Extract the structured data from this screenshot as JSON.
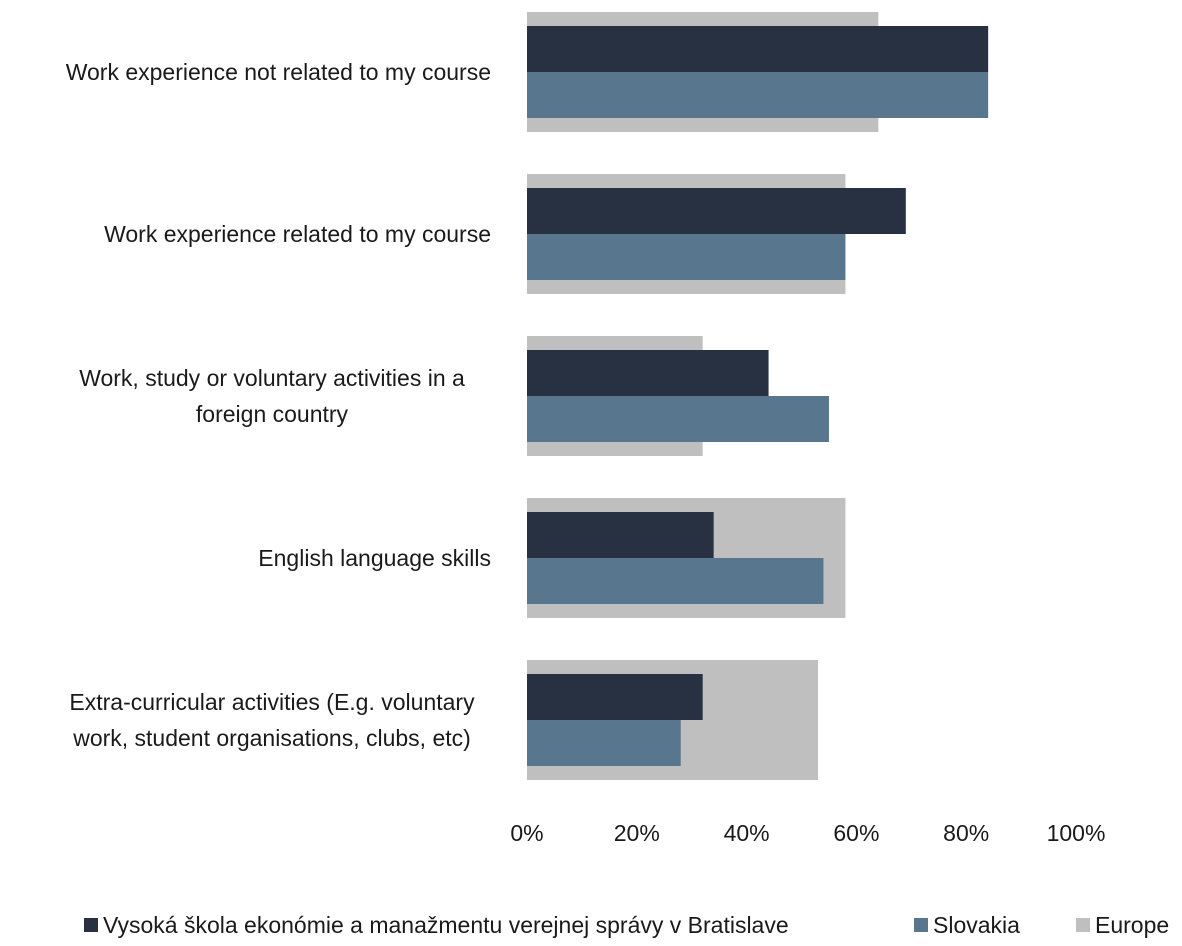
{
  "chart_data": {
    "type": "bar",
    "orientation": "horizontal",
    "categories": [
      [
        "Work experience not related to my course"
      ],
      [
        "Work experience related to my course"
      ],
      [
        "Work, study or voluntary activities in a",
        "foreign country"
      ],
      [
        "English language skills"
      ],
      [
        "Extra-curricular activities (E.g. voluntary",
        "work, student organisations, clubs, etc)"
      ]
    ],
    "series": [
      {
        "name": "Vysoká škola ekonómie a manažmentu verejnej správy v Bratislave",
        "color": "#283142",
        "values": [
          84,
          69,
          44,
          34,
          32
        ]
      },
      {
        "name": "Slovakia",
        "color": "#58768e",
        "values": [
          84,
          58,
          55,
          54,
          28
        ]
      },
      {
        "name": "Europe",
        "color": "#bfbfbf",
        "values": [
          64,
          58,
          32,
          58,
          53
        ]
      }
    ],
    "x_ticks": [
      "0%",
      "20%",
      "40%",
      "60%",
      "80%",
      "100%"
    ],
    "xlim": [
      0,
      100
    ],
    "grid": false,
    "legend_position": "bottom"
  }
}
